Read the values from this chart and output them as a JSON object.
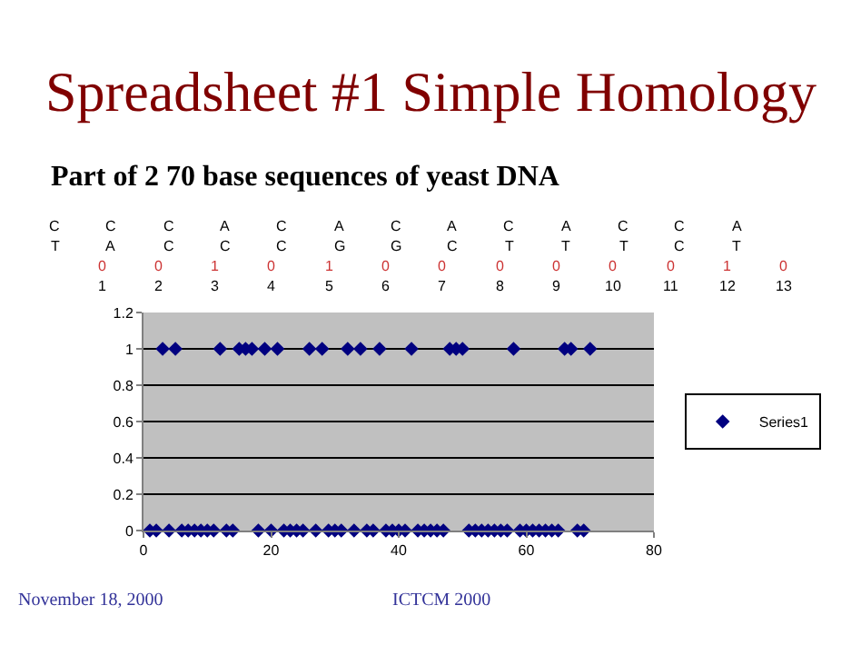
{
  "chart_data": {
    "type": "scatter",
    "title": "Spreadsheet #1 Simple Homology",
    "subtitle": "Part of 2 70 base sequences of yeast DNA",
    "annotations": [
      "C C C A C A C A C A C C A",
      "T A C C C G G C T T T C T",
      "0 0 1 0 1 0 0 0 0 0 0 1 0",
      "1 2 3 4 5 6 7 8 9 10 11 12 13",
      "November 18, 2000",
      "ICTCM 2000"
    ],
    "x": [
      1,
      2,
      3,
      4,
      5,
      6,
      7,
      8,
      9,
      10,
      11,
      12,
      13,
      14,
      15,
      16,
      17,
      18,
      19,
      20,
      21,
      22,
      23,
      24,
      25,
      26,
      27,
      28,
      29,
      30,
      31,
      32,
      33,
      34,
      35,
      36,
      37,
      38,
      39,
      40,
      41,
      42,
      43,
      44,
      45,
      46,
      47,
      48,
      49,
      50,
      51,
      52,
      53,
      54,
      55,
      56,
      57,
      58,
      59,
      60,
      61,
      62,
      63,
      64,
      65,
      66,
      67,
      68,
      69,
      70
    ],
    "series": [
      {
        "name": "Series1",
        "color": "#000080",
        "values": [
          0,
          0,
          1,
          0,
          1,
          0,
          0,
          0,
          0,
          0,
          0,
          1,
          0,
          0,
          1,
          1,
          1,
          0,
          1,
          0,
          1,
          0,
          0,
          0,
          0,
          1,
          0,
          1,
          0,
          0,
          0,
          1,
          0,
          1,
          0,
          0,
          1,
          0,
          0,
          0,
          0,
          1,
          0,
          0,
          0,
          0,
          0,
          1,
          1,
          1,
          0,
          0,
          0,
          0,
          0,
          0,
          0,
          1,
          0,
          0,
          0,
          0,
          0,
          0,
          0,
          1,
          1,
          0,
          0,
          1
        ]
      }
    ],
    "xlim": [
      0,
      80
    ],
    "xticks": [
      0,
      20,
      40,
      60,
      80
    ],
    "ylim": [
      0,
      1.2
    ],
    "yticks": [
      0,
      0.2,
      0.4,
      0.6,
      0.8,
      1,
      1.2
    ],
    "grid": "y",
    "legend": "right",
    "marker": "diamond"
  }
}
